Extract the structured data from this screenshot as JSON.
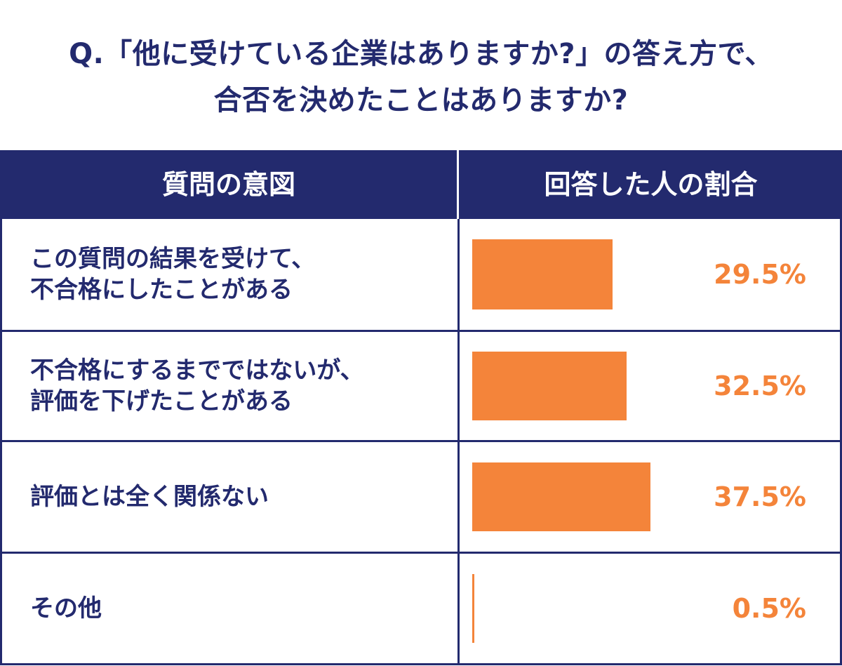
{
  "title": {
    "line1": "Q.「他に受けている企業はありますか?」の答え方で、",
    "line2": "合否を決めたことはありますか?"
  },
  "table": {
    "header_left": "質問の意図",
    "header_right": "回答した人の割合"
  },
  "colors": {
    "header": "#232a6e",
    "bar": "#f4843a",
    "text": "#232a6e"
  },
  "chart_data": {
    "type": "bar",
    "orientation": "horizontal",
    "categories": [
      "この質問の結果を受けて、\n不合格にしたことがある",
      "不合格にするまでではないが、\n評価を下げたことがある",
      "評価とは全く関係ない",
      "その他"
    ],
    "values": [
      29.5,
      32.5,
      37.5,
      0.5
    ],
    "value_labels": [
      "29.5%",
      "32.5%",
      "37.5%",
      "0.5%"
    ],
    "unit": "%",
    "xlim": [
      0,
      100
    ]
  }
}
